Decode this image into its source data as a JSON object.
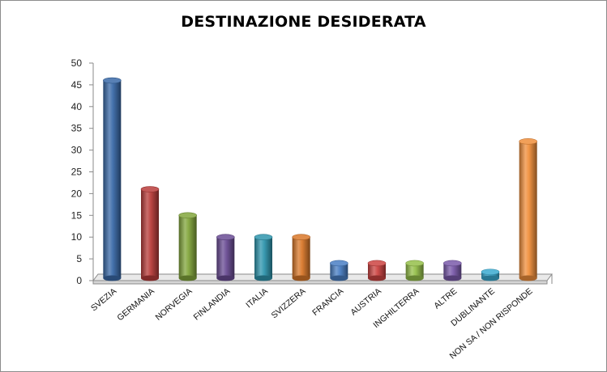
{
  "chart_data": {
    "type": "bar",
    "title": "DESTINAZIONE DESIDERATA",
    "xlabel": "",
    "ylabel": "",
    "ylim": [
      0,
      50
    ],
    "yticks": [
      0,
      5,
      10,
      15,
      20,
      25,
      30,
      35,
      40,
      45,
      50
    ],
    "grid": false,
    "legend": "none",
    "style": "3d-cylinder",
    "categories": [
      "SVEZIA",
      "GERMANIA",
      "NORVEGIA",
      "FINLANDIA",
      "ITALIA",
      "SVIZZERA",
      "FRANCIA",
      "AUSTRIA",
      "INGHILTERRA",
      "ALTRE",
      "DUBLINANTE",
      "NON SA / NON RISPONDE"
    ],
    "values": [
      46,
      21,
      15,
      10,
      10,
      10,
      4,
      4,
      4,
      4,
      2,
      32
    ],
    "colors": [
      "#3a6aa8",
      "#b83c3a",
      "#82a63c",
      "#6a4c94",
      "#2f95ad",
      "#d9782a",
      "#4a7fc4",
      "#cc4442",
      "#95bf4a",
      "#7a5aaa",
      "#3aaad0",
      "#f08f3c"
    ]
  }
}
